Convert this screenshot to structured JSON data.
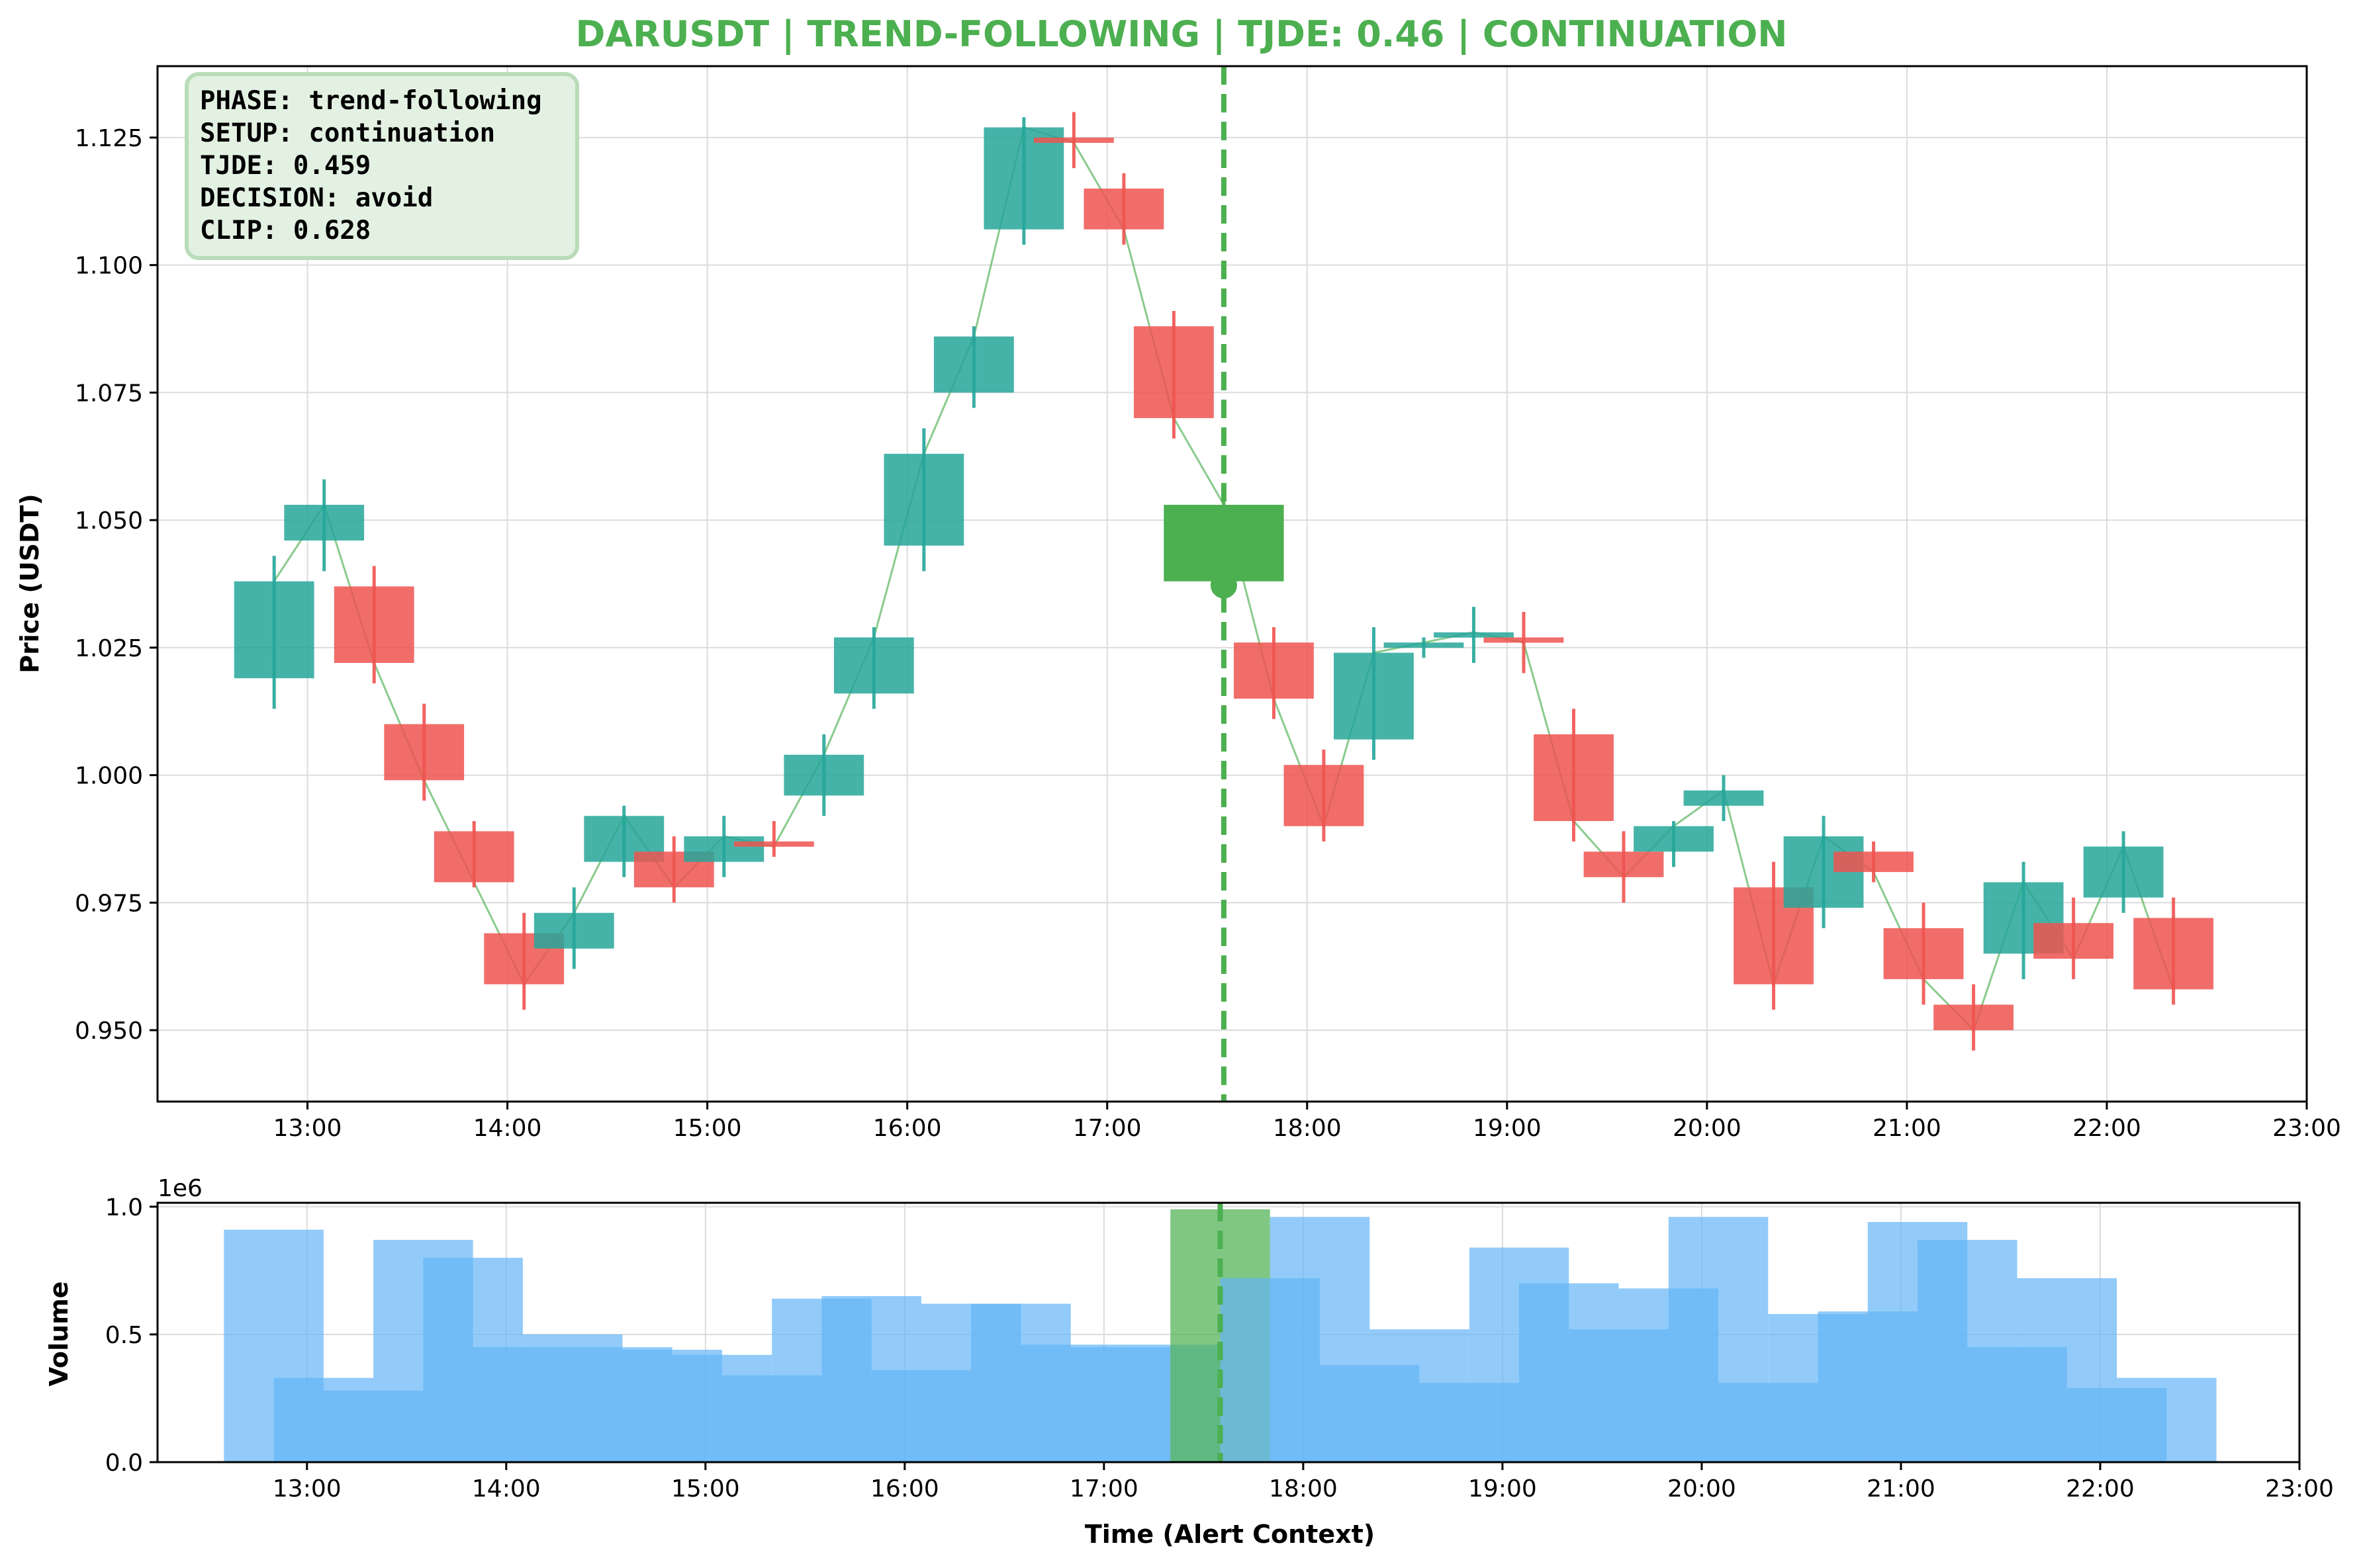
{
  "title": "DARUSDT | TREND-FOLLOWING | TJDE: 0.46 | CONTINUATION",
  "colors": {
    "title": "#4caf50",
    "up": "#26a69a",
    "down": "#ef5350",
    "alert": "#4caf50",
    "volume": "#64b5f6",
    "close_line": "#4caf50",
    "infobox_bg": "#e3f1e3",
    "infobox_border": "#b8dcb8"
  },
  "info_box": [
    "PHASE: trend-following",
    "SETUP: continuation",
    "TJDE: 0.459",
    "DECISION: avoid",
    "CLIP: 0.628"
  ],
  "x_ticks": [
    "13:00",
    "14:00",
    "15:00",
    "16:00",
    "17:00",
    "18:00",
    "19:00",
    "20:00",
    "21:00",
    "22:00",
    "23:00"
  ],
  "price_ticks": [
    "0.950",
    "0.975",
    "1.000",
    "1.025",
    "1.050",
    "1.075",
    "1.100",
    "1.125"
  ],
  "volume_ticks": [
    "0.0",
    "0.5",
    "1.0"
  ],
  "volume_exponent": "1e6",
  "chart_data": [
    {
      "type": "candlestick",
      "ylabel": "Price (USDT)",
      "ylim": [
        0.936,
        1.139
      ],
      "xlim": [
        "12:15",
        "23:00"
      ],
      "grid": true,
      "alert_time": "17:35",
      "candles": [
        {
          "t": "12:50",
          "o": 1.019,
          "h": 1.043,
          "l": 1.013,
          "c": 1.038,
          "dir": "up"
        },
        {
          "t": "13:05",
          "o": 1.046,
          "h": 1.058,
          "l": 1.04,
          "c": 1.053,
          "dir": "up"
        },
        {
          "t": "13:20",
          "o": 1.037,
          "h": 1.041,
          "l": 1.018,
          "c": 1.022,
          "dir": "down"
        },
        {
          "t": "13:35",
          "o": 1.01,
          "h": 1.014,
          "l": 0.995,
          "c": 0.999,
          "dir": "down"
        },
        {
          "t": "13:50",
          "o": 0.989,
          "h": 0.991,
          "l": 0.978,
          "c": 0.979,
          "dir": "down"
        },
        {
          "t": "14:05",
          "o": 0.969,
          "h": 0.973,
          "l": 0.954,
          "c": 0.959,
          "dir": "down"
        },
        {
          "t": "14:20",
          "o": 0.966,
          "h": 0.978,
          "l": 0.962,
          "c": 0.973,
          "dir": "up"
        },
        {
          "t": "14:35",
          "o": 0.983,
          "h": 0.994,
          "l": 0.98,
          "c": 0.992,
          "dir": "up"
        },
        {
          "t": "14:50",
          "o": 0.985,
          "h": 0.988,
          "l": 0.975,
          "c": 0.978,
          "dir": "down"
        },
        {
          "t": "15:05",
          "o": 0.983,
          "h": 0.992,
          "l": 0.98,
          "c": 0.988,
          "dir": "up"
        },
        {
          "t": "15:20",
          "o": 0.987,
          "h": 0.991,
          "l": 0.984,
          "c": 0.986,
          "dir": "down"
        },
        {
          "t": "15:35",
          "o": 0.996,
          "h": 1.008,
          "l": 0.992,
          "c": 1.004,
          "dir": "up"
        },
        {
          "t": "15:50",
          "o": 1.016,
          "h": 1.029,
          "l": 1.013,
          "c": 1.027,
          "dir": "up"
        },
        {
          "t": "16:05",
          "o": 1.045,
          "h": 1.068,
          "l": 1.04,
          "c": 1.063,
          "dir": "up"
        },
        {
          "t": "16:20",
          "o": 1.075,
          "h": 1.088,
          "l": 1.072,
          "c": 1.086,
          "dir": "up"
        },
        {
          "t": "16:35",
          "o": 1.107,
          "h": 1.129,
          "l": 1.104,
          "c": 1.127,
          "dir": "up"
        },
        {
          "t": "16:50",
          "o": 1.125,
          "h": 1.13,
          "l": 1.119,
          "c": 1.124,
          "dir": "down"
        },
        {
          "t": "17:05",
          "o": 1.115,
          "h": 1.118,
          "l": 1.104,
          "c": 1.107,
          "dir": "down"
        },
        {
          "t": "17:20",
          "o": 1.088,
          "h": 1.091,
          "l": 1.066,
          "c": 1.07,
          "dir": "down"
        },
        {
          "t": "17:35",
          "o": 1.038,
          "h": 1.056,
          "l": 1.036,
          "c": 1.053,
          "dir": "alert"
        },
        {
          "t": "17:50",
          "o": 1.026,
          "h": 1.029,
          "l": 1.011,
          "c": 1.015,
          "dir": "down"
        },
        {
          "t": "18:05",
          "o": 1.002,
          "h": 1.005,
          "l": 0.987,
          "c": 0.99,
          "dir": "down"
        },
        {
          "t": "18:20",
          "o": 1.007,
          "h": 1.029,
          "l": 1.003,
          "c": 1.024,
          "dir": "up"
        },
        {
          "t": "18:35",
          "o": 1.025,
          "h": 1.027,
          "l": 1.023,
          "c": 1.026,
          "dir": "up"
        },
        {
          "t": "18:50",
          "o": 1.027,
          "h": 1.033,
          "l": 1.022,
          "c": 1.028,
          "dir": "up"
        },
        {
          "t": "19:05",
          "o": 1.027,
          "h": 1.032,
          "l": 1.02,
          "c": 1.026,
          "dir": "down"
        },
        {
          "t": "19:20",
          "o": 1.008,
          "h": 1.013,
          "l": 0.987,
          "c": 0.991,
          "dir": "down"
        },
        {
          "t": "19:35",
          "o": 0.985,
          "h": 0.989,
          "l": 0.975,
          "c": 0.98,
          "dir": "down"
        },
        {
          "t": "19:50",
          "o": 0.985,
          "h": 0.991,
          "l": 0.982,
          "c": 0.99,
          "dir": "up"
        },
        {
          "t": "20:05",
          "o": 0.994,
          "h": 1.0,
          "l": 0.991,
          "c": 0.997,
          "dir": "up"
        },
        {
          "t": "20:20",
          "o": 0.978,
          "h": 0.983,
          "l": 0.954,
          "c": 0.959,
          "dir": "down"
        },
        {
          "t": "20:35",
          "o": 0.974,
          "h": 0.992,
          "l": 0.97,
          "c": 0.988,
          "dir": "up"
        },
        {
          "t": "20:50",
          "o": 0.985,
          "h": 0.987,
          "l": 0.979,
          "c": 0.981,
          "dir": "down"
        },
        {
          "t": "21:05",
          "o": 0.97,
          "h": 0.975,
          "l": 0.955,
          "c": 0.96,
          "dir": "down"
        },
        {
          "t": "21:20",
          "o": 0.955,
          "h": 0.959,
          "l": 0.946,
          "c": 0.95,
          "dir": "down"
        },
        {
          "t": "21:35",
          "o": 0.965,
          "h": 0.983,
          "l": 0.96,
          "c": 0.979,
          "dir": "up"
        },
        {
          "t": "21:50",
          "o": 0.971,
          "h": 0.976,
          "l": 0.96,
          "c": 0.964,
          "dir": "down"
        },
        {
          "t": "22:05",
          "o": 0.976,
          "h": 0.989,
          "l": 0.973,
          "c": 0.986,
          "dir": "up"
        },
        {
          "t": "22:20",
          "o": 0.972,
          "h": 0.976,
          "l": 0.955,
          "c": 0.958,
          "dir": "down"
        }
      ]
    },
    {
      "type": "bar",
      "xlabel": "Time (Alert Context)",
      "ylabel": "Volume",
      "ylim": [
        0,
        1000000
      ],
      "grid": true,
      "bars": [
        {
          "t": "12:50",
          "v": 910000
        },
        {
          "t": "13:05",
          "v": 330000
        },
        {
          "t": "13:20",
          "v": 280000
        },
        {
          "t": "13:35",
          "v": 870000
        },
        {
          "t": "13:50",
          "v": 800000
        },
        {
          "t": "14:05",
          "v": 450000
        },
        {
          "t": "14:20",
          "v": 500000
        },
        {
          "t": "14:35",
          "v": 450000
        },
        {
          "t": "14:50",
          "v": 440000
        },
        {
          "t": "15:05",
          "v": 420000
        },
        {
          "t": "15:20",
          "v": 340000
        },
        {
          "t": "15:35",
          "v": 640000
        },
        {
          "t": "15:50",
          "v": 650000
        },
        {
          "t": "16:05",
          "v": 360000
        },
        {
          "t": "16:20",
          "v": 620000
        },
        {
          "t": "16:35",
          "v": 620000
        },
        {
          "t": "16:50",
          "v": 460000
        },
        {
          "t": "17:05",
          "v": 450000
        },
        {
          "t": "17:20",
          "v": 460000
        },
        {
          "t": "17:35",
          "v": 990000,
          "alert": true
        },
        {
          "t": "17:50",
          "v": 720000
        },
        {
          "t": "18:05",
          "v": 960000
        },
        {
          "t": "18:20",
          "v": 380000
        },
        {
          "t": "18:35",
          "v": 520000
        },
        {
          "t": "18:50",
          "v": 310000
        },
        {
          "t": "19:05",
          "v": 840000
        },
        {
          "t": "19:20",
          "v": 700000
        },
        {
          "t": "19:35",
          "v": 520000
        },
        {
          "t": "19:50",
          "v": 680000
        },
        {
          "t": "20:05",
          "v": 960000
        },
        {
          "t": "20:20",
          "v": 310000
        },
        {
          "t": "20:35",
          "v": 580000
        },
        {
          "t": "20:50",
          "v": 590000
        },
        {
          "t": "21:05",
          "v": 940000
        },
        {
          "t": "21:20",
          "v": 870000
        },
        {
          "t": "21:35",
          "v": 450000
        },
        {
          "t": "21:50",
          "v": 720000
        },
        {
          "t": "22:05",
          "v": 290000
        },
        {
          "t": "22:20",
          "v": 330000
        }
      ]
    }
  ]
}
